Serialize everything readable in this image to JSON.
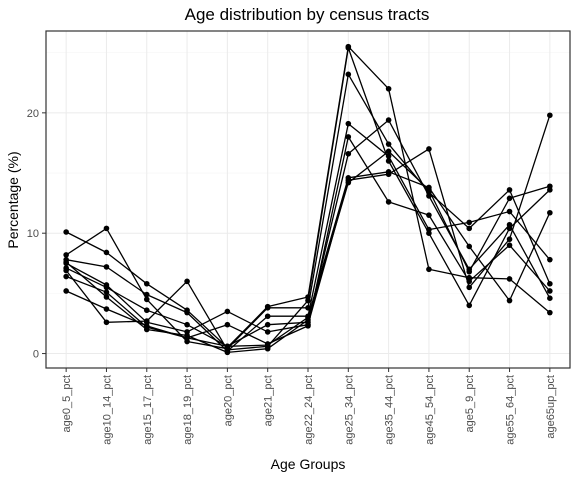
{
  "chart_data": {
    "type": "line",
    "title": "Age distribution by census tracts",
    "xlabel": "Age Groups",
    "ylabel": "Percentage (%)",
    "categories": [
      "age0_5_pct",
      "age10_14_pct",
      "age15_17_pct",
      "age18_19_pct",
      "age20_pct",
      "age21_pct",
      "age22_24_pct",
      "age25_34_pct",
      "age35_44_pct",
      "age45_54_pct",
      "age5_9_pct",
      "age55_64_pct",
      "age65up_pct"
    ],
    "ylim": [
      -1.2,
      26.8
    ],
    "yticks": [
      0,
      10,
      20
    ],
    "grid": true,
    "line_color": "#000000",
    "series": [
      {
        "values": [
          10.1,
          8.4,
          5.8,
          3.6,
          0.5,
          3.9,
          4.7,
          25.5,
          22.0,
          7.0,
          6.3,
          6.2,
          3.4
        ]
      },
      {
        "values": [
          8.2,
          10.4,
          4.5,
          1.0,
          0.4,
          3.8,
          3.8,
          23.2,
          17.4,
          13.4,
          10.4,
          13.6,
          5.8
        ]
      },
      {
        "values": [
          7.8,
          7.2,
          4.9,
          3.4,
          0.2,
          3.1,
          3.1,
          19.1,
          16.4,
          10.3,
          10.9,
          11.8,
          7.8
        ]
      },
      {
        "values": [
          7.5,
          5.7,
          2.6,
          1.8,
          3.5,
          1.8,
          2.4,
          14.4,
          14.9,
          17.0,
          5.5,
          9.5,
          19.8
        ]
      },
      {
        "values": [
          7.1,
          5.5,
          3.6,
          2.4,
          0.6,
          2.4,
          2.6,
          16.6,
          19.4,
          13.1,
          7.0,
          10.7,
          4.6
        ]
      },
      {
        "values": [
          6.9,
          2.6,
          2.7,
          6.0,
          0.3,
          0.6,
          4.4,
          25.4,
          16.0,
          10.0,
          4.0,
          10.4,
          13.6
        ]
      },
      {
        "values": [
          6.4,
          5.1,
          2.2,
          1.3,
          0.6,
          0.7,
          3.0,
          14.6,
          15.1,
          13.8,
          8.9,
          4.4,
          11.7
        ]
      },
      {
        "values": [
          5.2,
          3.7,
          2.3,
          1.3,
          2.4,
          0.8,
          2.3,
          18.0,
          12.6,
          11.5,
          6.0,
          9.0,
          5.2
        ]
      },
      {
        "values": [
          7.6,
          4.7,
          2.0,
          1.5,
          0.1,
          0.4,
          2.8,
          14.2,
          16.8,
          13.6,
          6.8,
          12.9,
          13.9
        ]
      }
    ]
  }
}
